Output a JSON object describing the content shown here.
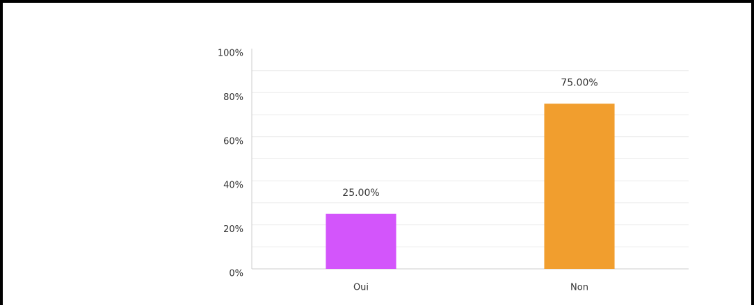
{
  "chart_data": {
    "type": "bar",
    "categories": [
      "Oui",
      "Non"
    ],
    "values": [
      25,
      75
    ],
    "value_labels": [
      "25.00%",
      "75.00%"
    ],
    "colors": [
      "#d355fb",
      "#f19e2e"
    ],
    "ylim": [
      0,
      100
    ],
    "yticks": [
      {
        "value": 0,
        "label": "0%"
      },
      {
        "value": 20,
        "label": "20%"
      },
      {
        "value": 40,
        "label": "40%"
      },
      {
        "value": 60,
        "label": "60%"
      },
      {
        "value": 80,
        "label": "80%"
      },
      {
        "value": 100,
        "label": "100%"
      }
    ],
    "minor_yticks": [
      10,
      30,
      50,
      70,
      90
    ],
    "grid": true
  }
}
